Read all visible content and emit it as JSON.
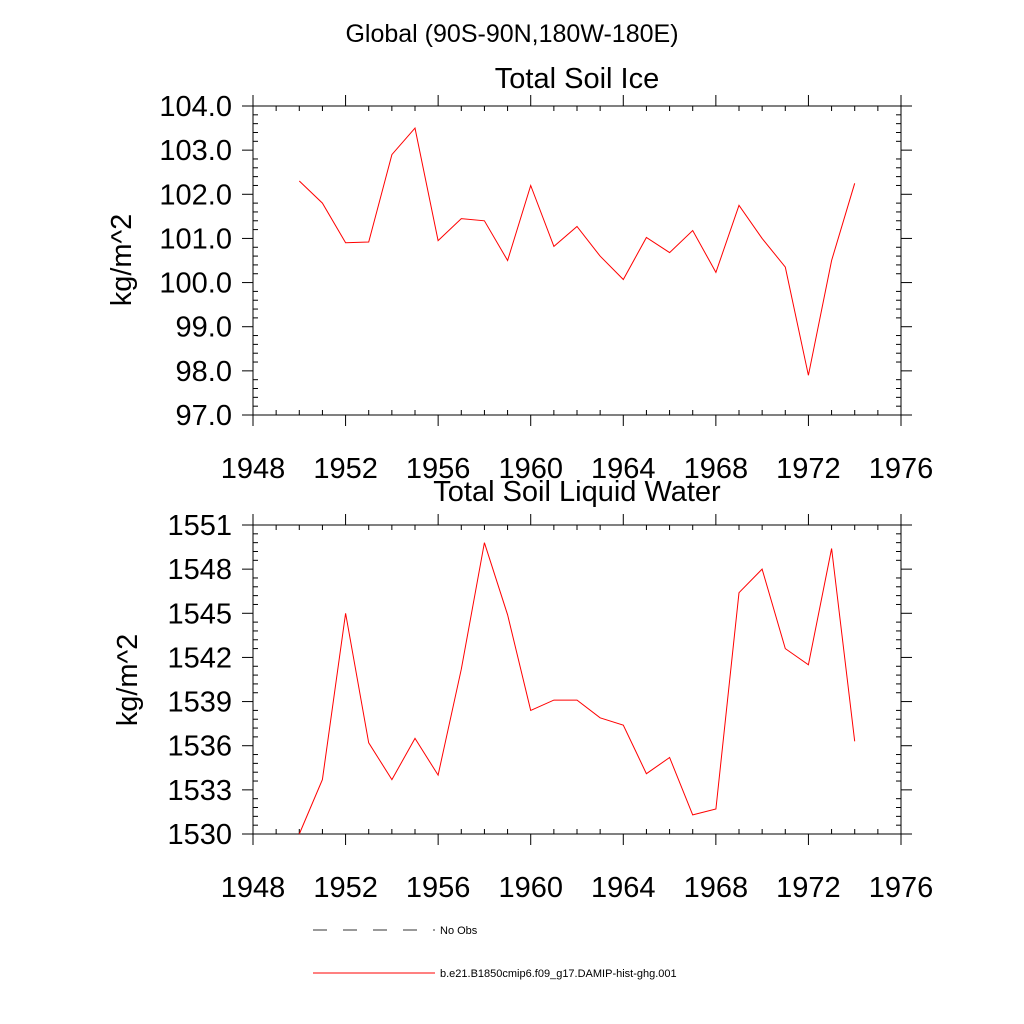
{
  "suptitle": "Global (90S-90N,180W-180E)",
  "legend": [
    {
      "label": "No Obs",
      "color": "#333333",
      "dash": true
    },
    {
      "label": "b.e21.B1850cmip6.f09_g17.DAMIP-hist-ghg.001",
      "color": "#ff0000",
      "dash": false
    }
  ],
  "chart_data": [
    {
      "type": "line",
      "title": "Total Soil Ice",
      "xlabel": "",
      "ylabel": "kg/m^2",
      "xlim": [
        1948,
        1976
      ],
      "ylim": [
        97,
        104
      ],
      "xticks": [
        1948,
        1952,
        1956,
        1960,
        1964,
        1968,
        1972,
        1976
      ],
      "xtick_labels": [
        "1948",
        "1952",
        "1956",
        "1960",
        "1964",
        "1968",
        "1972",
        "1976"
      ],
      "yticks": [
        97,
        98,
        99,
        100,
        101,
        102,
        103,
        104
      ],
      "ytick_labels": [
        "97.0",
        "98.0",
        "99.0",
        "100.0",
        "101.0",
        "102.0",
        "103.0",
        "104.0"
      ],
      "grid": false,
      "series": [
        {
          "name": "b.e21.B1850cmip6.f09_g17.DAMIP-hist-ghg.001",
          "color": "#ff0000",
          "x": [
            1950,
            1951,
            1952,
            1953,
            1954,
            1955,
            1956,
            1957,
            1958,
            1959,
            1960,
            1961,
            1962,
            1963,
            1964,
            1965,
            1966,
            1967,
            1968,
            1969,
            1970,
            1971,
            1972,
            1973,
            1974
          ],
          "y": [
            102.3,
            101.8,
            100.9,
            100.92,
            102.9,
            103.5,
            100.95,
            101.45,
            101.4,
            100.5,
            102.2,
            100.82,
            101.27,
            100.6,
            100.07,
            101.02,
            100.68,
            101.18,
            100.23,
            101.75,
            101.0,
            100.35,
            97.9,
            100.5,
            102.25
          ]
        }
      ]
    },
    {
      "type": "line",
      "title": "Total Soil Liquid Water",
      "xlabel": "",
      "ylabel": "kg/m^2",
      "xlim": [
        1948,
        1976
      ],
      "ylim": [
        1530,
        1551
      ],
      "xticks": [
        1948,
        1952,
        1956,
        1960,
        1964,
        1968,
        1972,
        1976
      ],
      "xtick_labels": [
        "1948",
        "1952",
        "1956",
        "1960",
        "1964",
        "1968",
        "1972",
        "1976"
      ],
      "yticks": [
        1530,
        1533,
        1536,
        1539,
        1542,
        1545,
        1548,
        1551
      ],
      "ytick_labels": [
        "1530",
        "1533",
        "1536",
        "1539",
        "1542",
        "1545",
        "1548",
        "1551"
      ],
      "grid": false,
      "series": [
        {
          "name": "b.e21.B1850cmip6.f09_g17.DAMIP-hist-ghg.001",
          "color": "#ff0000",
          "x": [
            1950,
            1951,
            1952,
            1953,
            1954,
            1955,
            1956,
            1957,
            1958,
            1959,
            1960,
            1961,
            1962,
            1963,
            1964,
            1965,
            1966,
            1967,
            1968,
            1969,
            1970,
            1971,
            1972,
            1973,
            1974
          ],
          "y": [
            1530.0,
            1533.7,
            1545.0,
            1536.2,
            1533.7,
            1536.5,
            1534.0,
            1541.2,
            1549.8,
            1544.9,
            1538.4,
            1539.1,
            1539.1,
            1537.9,
            1537.4,
            1534.1,
            1535.2,
            1531.3,
            1531.7,
            1546.4,
            1548.0,
            1542.6,
            1541.5,
            1549.4,
            1536.3
          ]
        }
      ]
    }
  ]
}
